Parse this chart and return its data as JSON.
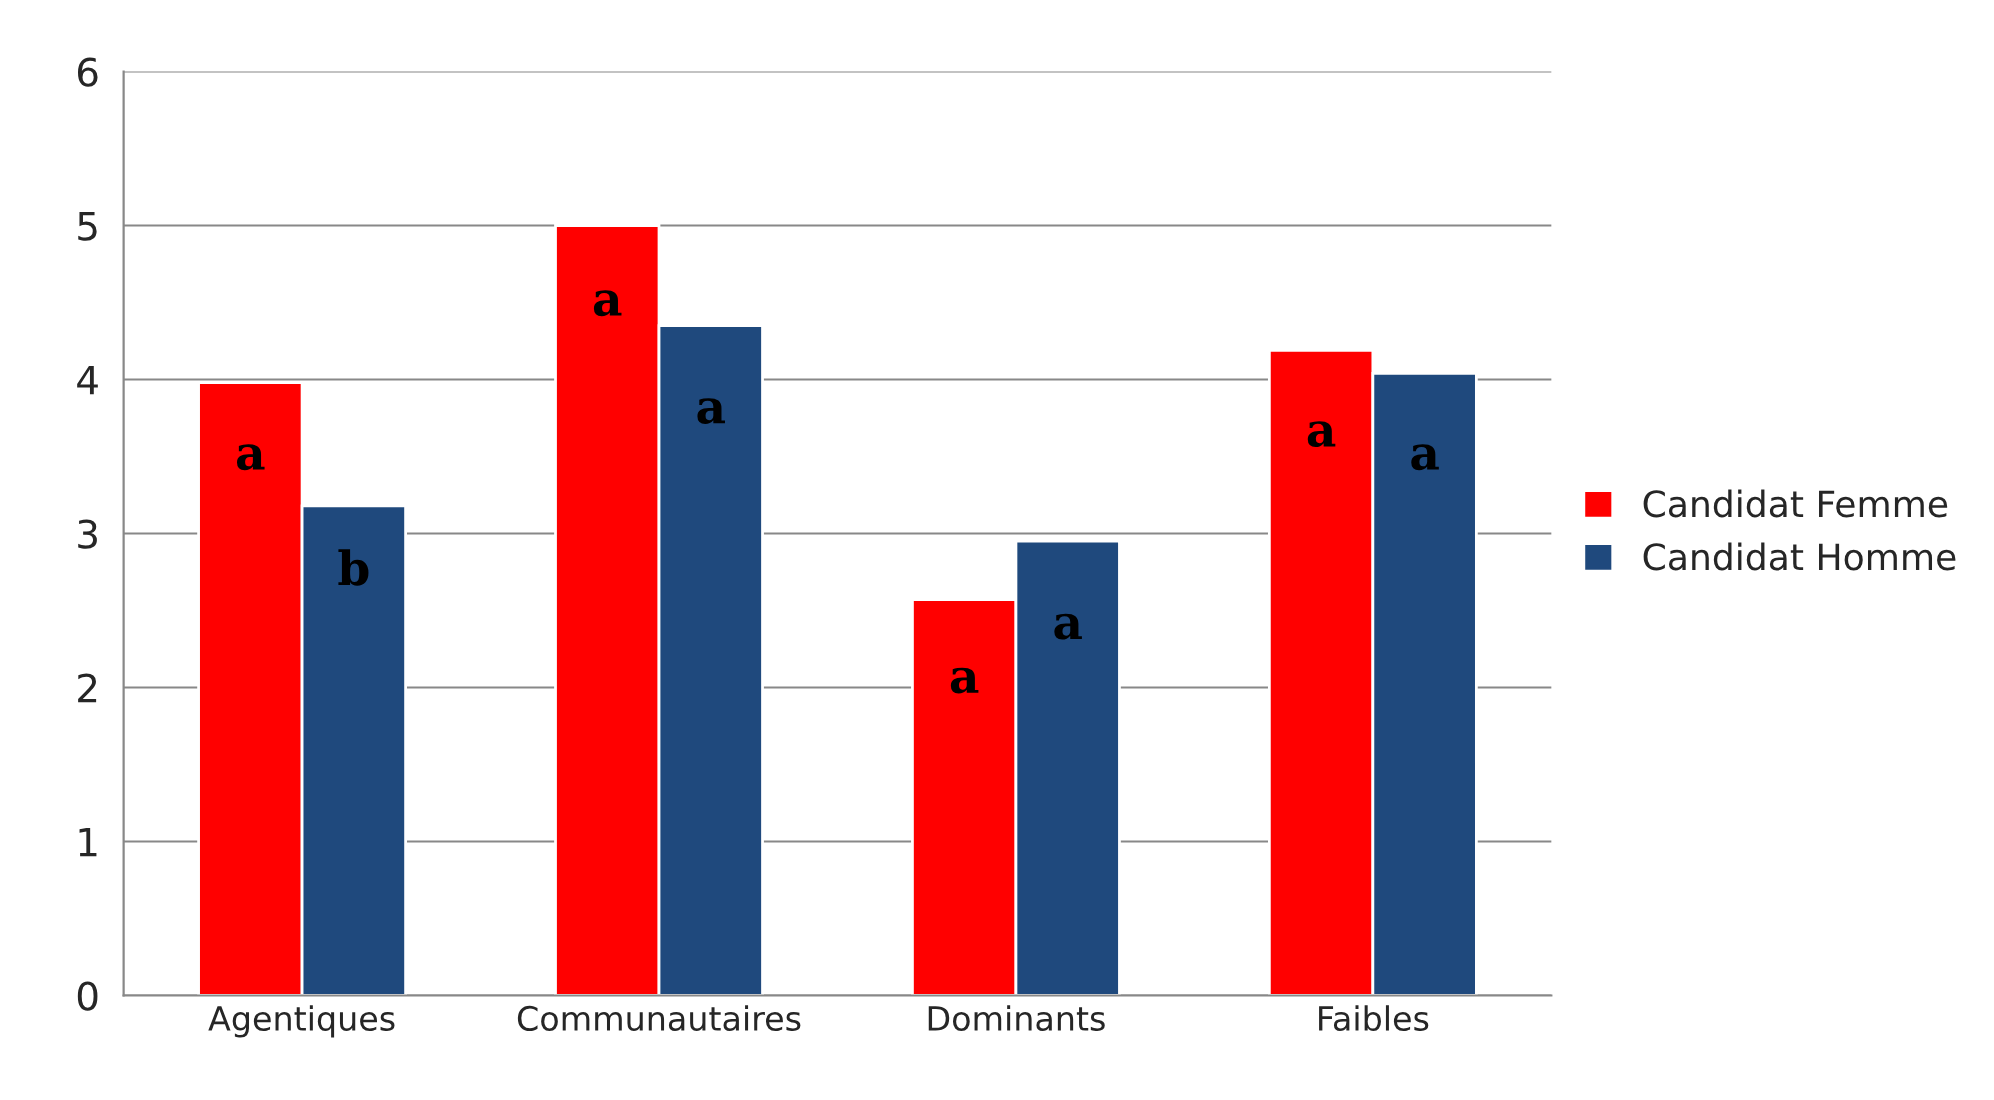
{
  "chart_data": {
    "type": "bar",
    "categories": [
      "Agentiques",
      "Communautaires",
      "Dominants",
      "Faibles"
    ],
    "series": [
      {
        "name": "Candidat Femme",
        "color": "#ff0000",
        "values": [
          3.98,
          5.0,
          2.57,
          4.19
        ]
      },
      {
        "name": "Candidat Homme",
        "color": "#1f497d",
        "values": [
          3.18,
          4.35,
          2.95,
          4.04
        ]
      }
    ],
    "ylim": [
      0,
      6
    ],
    "yticks": [
      0,
      1,
      2,
      3,
      4,
      5,
      6
    ],
    "grid": "y",
    "legend": "right",
    "annotations": [
      {
        "text": "a",
        "x": "Agentiques",
        "y": 3.5
      },
      {
        "text": "b",
        "x": "Agentiques",
        "y": 2.75
      },
      {
        "text": "a",
        "x": "Communautaires",
        "y": 4.5
      },
      {
        "text": "a",
        "x": "Communautaires",
        "y": 3.8
      },
      {
        "text": "a",
        "x": "Dominants",
        "y": 2.05
      },
      {
        "text": "a",
        "x": "Dominants",
        "y": 2.4
      },
      {
        "text": "a",
        "x": "Faibles",
        "y": 3.65
      },
      {
        "text": "a",
        "x": "Faibles",
        "y": 3.5
      }
    ]
  }
}
